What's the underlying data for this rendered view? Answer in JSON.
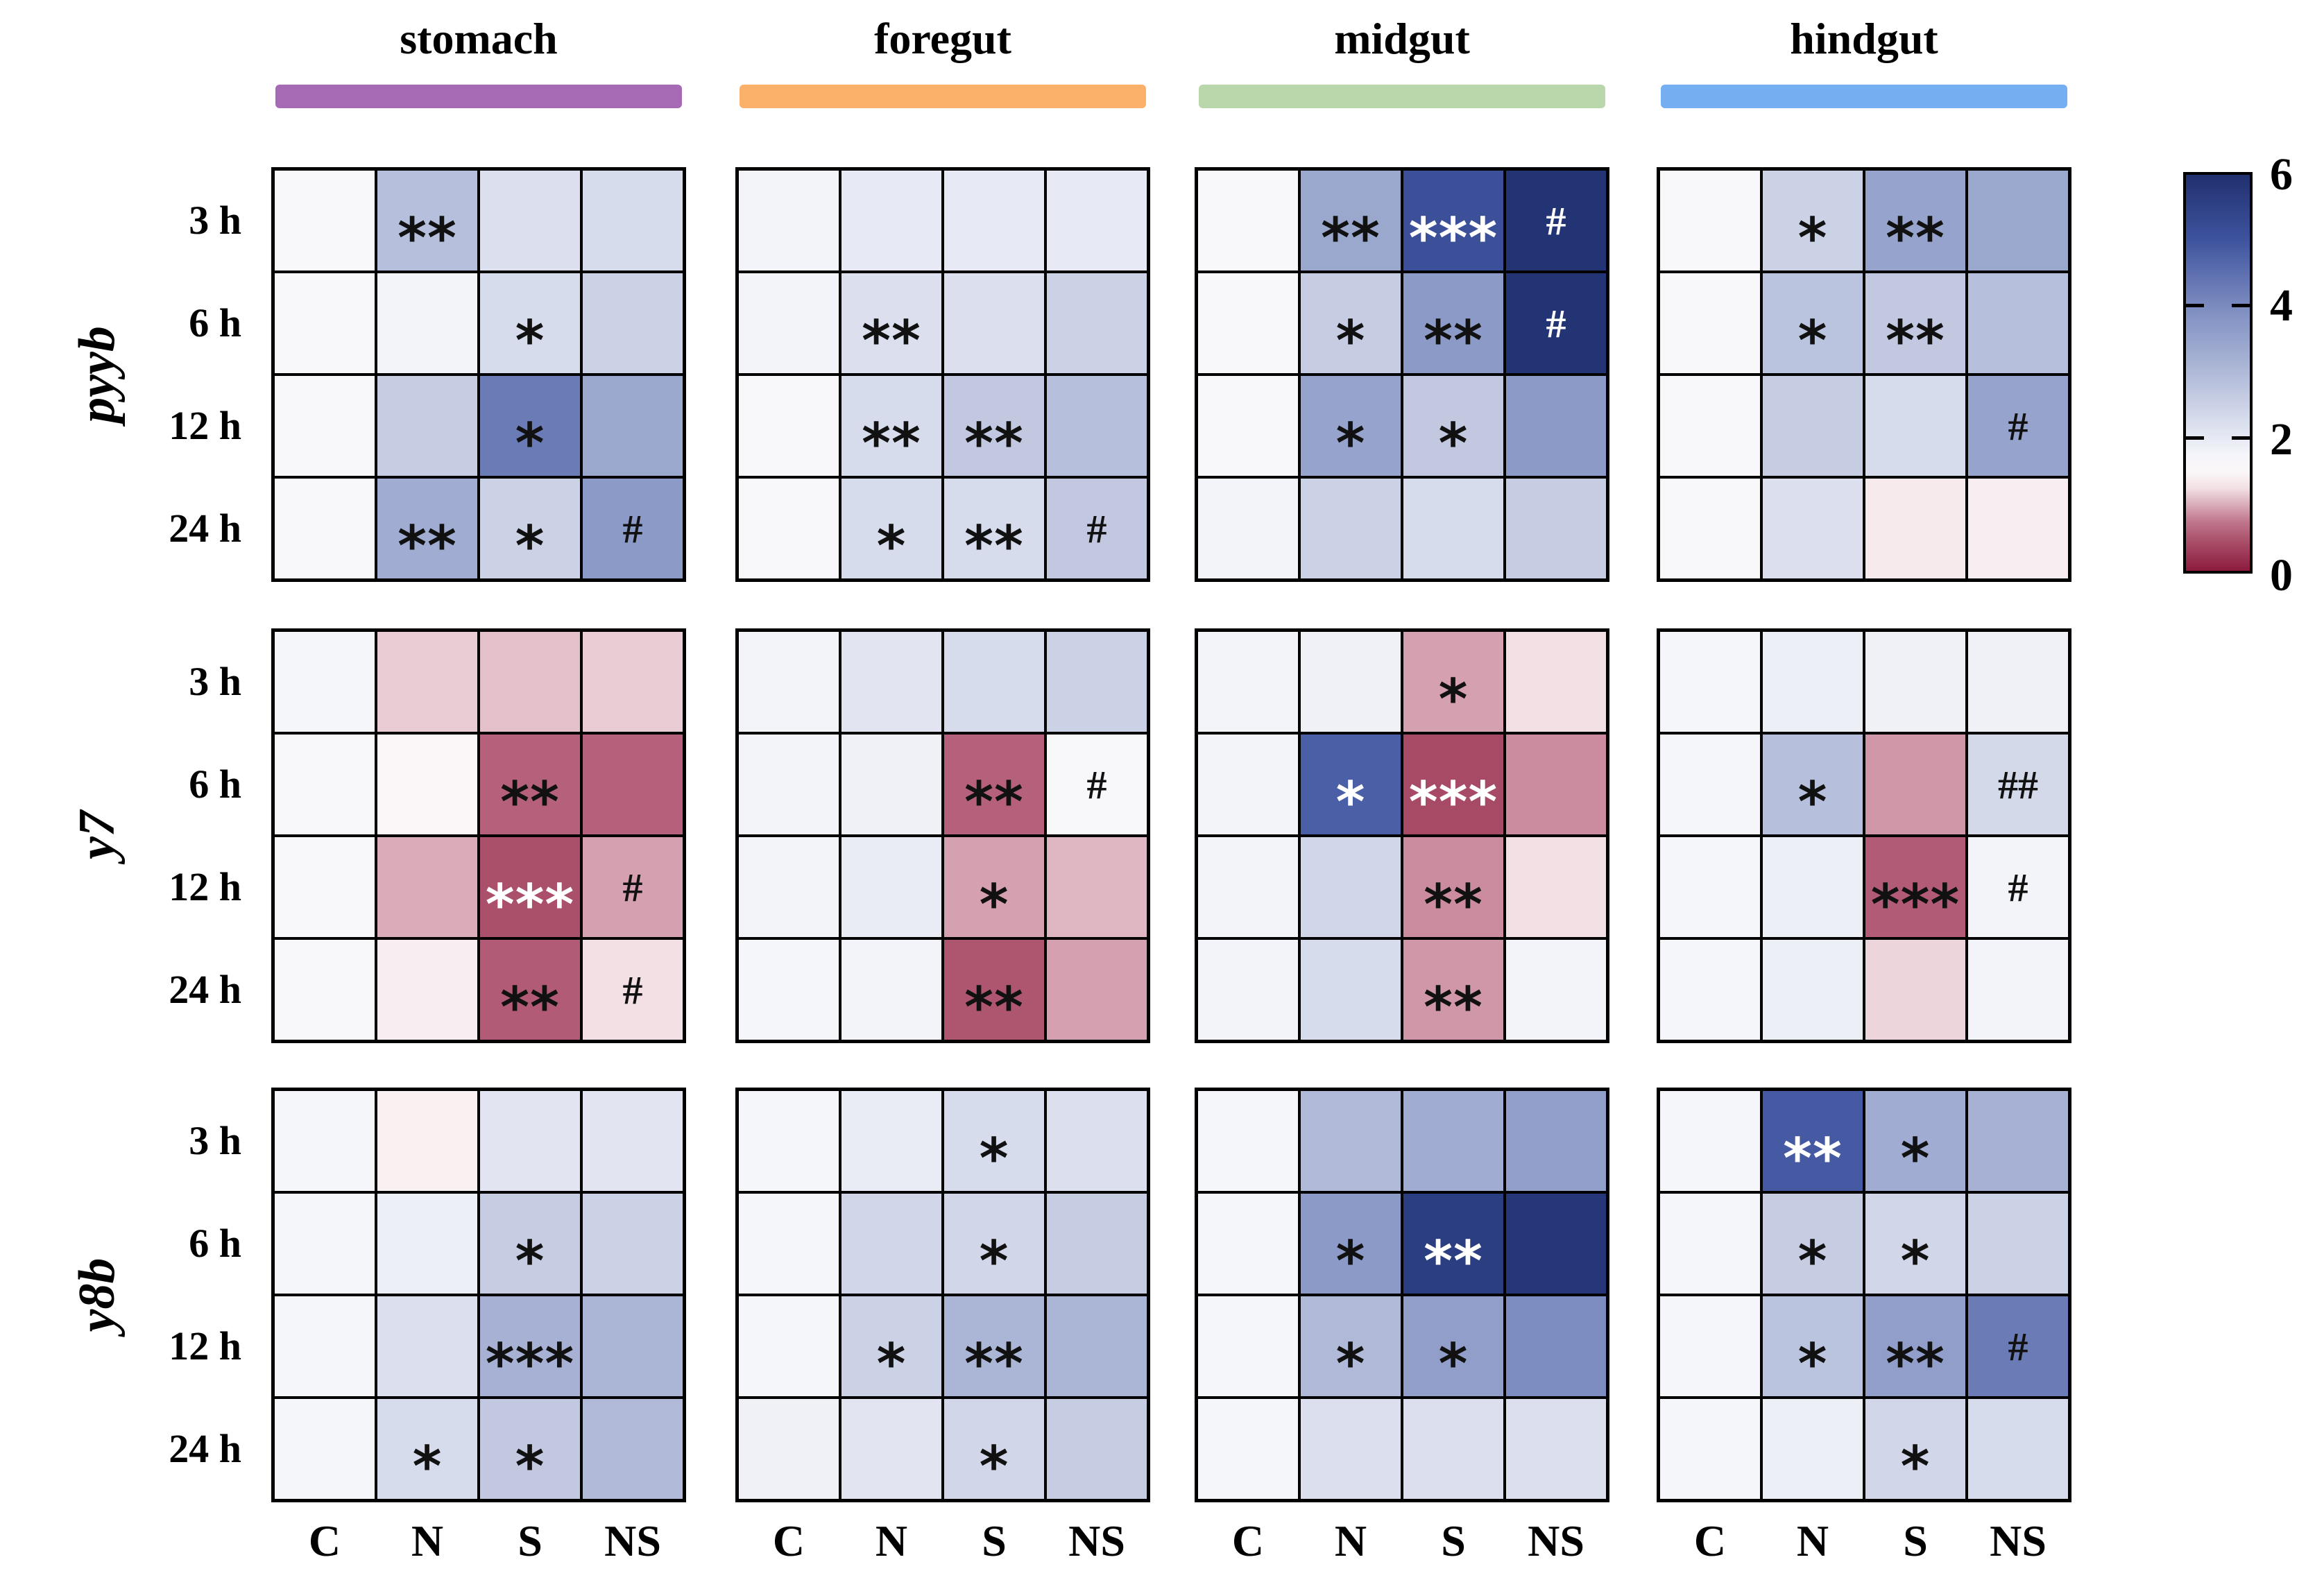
{
  "figure": {
    "background": "#ffffff"
  },
  "tissues": [
    {
      "label": "stomach",
      "bar_color": "#a66ab4"
    },
    {
      "label": "foregut",
      "bar_color": "#fbb169"
    },
    {
      "label": "midgut",
      "bar_color": "#b9d7ab"
    },
    {
      "label": "hindgut",
      "bar_color": "#76aef2"
    }
  ],
  "genes": [
    {
      "label": "pyyb"
    },
    {
      "label": "y7"
    },
    {
      "label": "y8b"
    }
  ],
  "time_labels": [
    "3 h",
    "6 h",
    "12 h",
    "24 h"
  ],
  "treatment_labels": [
    "C",
    "N",
    "S",
    "NS"
  ],
  "colorbar": {
    "min": 0,
    "max": 6,
    "ticks": [
      "6",
      "4",
      "2",
      "0"
    ],
    "tick_values": [
      6,
      4,
      2,
      0
    ]
  },
  "colormap_anchors": [
    [
      0,
      "#8b1b3d"
    ],
    [
      0.7,
      "#bc6d85"
    ],
    [
      1.3,
      "#f7eaed"
    ],
    [
      1.6,
      "#fdfdfd"
    ],
    [
      2,
      "#e7eaf4"
    ],
    [
      3,
      "#b0bad8"
    ],
    [
      4,
      "#7c8cc0"
    ],
    [
      5,
      "#3f549f"
    ],
    [
      6,
      "#20306f"
    ]
  ],
  "chart_data": {
    "type": "heatmap",
    "rows": [
      "3 h",
      "6 h",
      "12 h",
      "24 h"
    ],
    "columns": [
      "C",
      "N",
      "S",
      "NS"
    ],
    "value_range": [
      0,
      6
    ],
    "legend_position": "right",
    "grids": [
      {
        "gene": "pyyb",
        "tissue": "stomach",
        "g": 0,
        "t": 0,
        "values": [
          [
            1.7,
            2.9,
            2.2,
            2.3
          ],
          [
            1.7,
            1.8,
            2.3,
            2.5
          ],
          [
            1.7,
            2.6,
            4.3,
            3.4
          ],
          [
            1.7,
            3.3,
            2.5,
            3.7
          ]
        ],
        "annotations": [
          [
            "",
            "**",
            "",
            ""
          ],
          [
            "",
            "",
            "*",
            ""
          ],
          [
            "",
            "",
            "*",
            ""
          ],
          [
            "",
            "**",
            "*",
            "#"
          ]
        ],
        "white_text": []
      },
      {
        "gene": "pyyb",
        "tissue": "foregut",
        "g": 0,
        "t": 1,
        "values": [
          [
            1.8,
            2.0,
            2.0,
            2.0
          ],
          [
            1.8,
            2.2,
            2.2,
            2.5
          ],
          [
            1.7,
            2.3,
            2.7,
            2.9
          ],
          [
            1.7,
            2.3,
            2.3,
            2.7
          ]
        ],
        "annotations": [
          [
            "",
            "",
            "",
            ""
          ],
          [
            "",
            "**",
            "",
            ""
          ],
          [
            "",
            "**",
            "**",
            ""
          ],
          [
            "",
            "*",
            "**",
            "#"
          ]
        ],
        "white_text": []
      },
      {
        "gene": "pyyb",
        "tissue": "midgut",
        "g": 0,
        "t": 2,
        "values": [
          [
            1.7,
            3.4,
            5.1,
            5.9
          ],
          [
            1.7,
            2.6,
            3.7,
            5.9
          ],
          [
            1.7,
            3.5,
            2.7,
            3.7
          ],
          [
            1.8,
            2.5,
            2.3,
            2.6
          ]
        ],
        "annotations": [
          [
            "",
            "**",
            "***",
            "#"
          ],
          [
            "",
            "*",
            "**",
            "#"
          ],
          [
            "",
            "*",
            "*",
            ""
          ],
          [
            "",
            "",
            "",
            ""
          ]
        ],
        "white_text": [
          [
            0,
            2
          ],
          [
            0,
            3
          ],
          [
            1,
            3
          ]
        ]
      },
      {
        "gene": "pyyb",
        "tissue": "hindgut",
        "g": 0,
        "t": 3,
        "values": [
          [
            1.7,
            2.5,
            3.5,
            3.4
          ],
          [
            1.7,
            2.8,
            2.7,
            2.9
          ],
          [
            1.7,
            2.6,
            2.3,
            3.5
          ],
          [
            1.7,
            2.2,
            1.3,
            1.35
          ]
        ],
        "annotations": [
          [
            "",
            "*",
            "**",
            ""
          ],
          [
            "",
            "*",
            "**",
            ""
          ],
          [
            "",
            "",
            "",
            "#"
          ],
          [
            "",
            "",
            "",
            ""
          ]
        ],
        "white_text": []
      },
      {
        "gene": "y7",
        "tissue": "stomach",
        "g": 1,
        "t": 0,
        "values": [
          [
            1.75,
            1.15,
            1.1,
            1.15
          ],
          [
            1.7,
            1.5,
            0.6,
            0.6
          ],
          [
            1.7,
            1.0,
            0.45,
            0.95
          ],
          [
            1.7,
            1.35,
            0.55,
            1.25
          ]
        ],
        "annotations": [
          [
            "",
            "",
            "",
            ""
          ],
          [
            "",
            "",
            "**",
            ""
          ],
          [
            "",
            "",
            "***",
            "#"
          ],
          [
            "",
            "",
            "**",
            "#"
          ]
        ],
        "white_text": [
          [
            2,
            2
          ]
        ]
      },
      {
        "gene": "y7",
        "tissue": "foregut",
        "g": 1,
        "t": 1,
        "values": [
          [
            1.8,
            2.1,
            2.3,
            2.5
          ],
          [
            1.8,
            1.85,
            0.6,
            1.7
          ],
          [
            1.8,
            1.95,
            0.95,
            1.05
          ],
          [
            1.75,
            1.8,
            0.5,
            0.95
          ]
        ],
        "annotations": [
          [
            "",
            "",
            "",
            ""
          ],
          [
            "",
            "",
            "**",
            "#"
          ],
          [
            "",
            "",
            "*",
            ""
          ],
          [
            "",
            "",
            "**",
            ""
          ]
        ],
        "white_text": []
      },
      {
        "gene": "y7",
        "tissue": "midgut",
        "g": 1,
        "t": 2,
        "values": [
          [
            1.8,
            1.85,
            0.95,
            1.25
          ],
          [
            1.8,
            4.8,
            0.4,
            0.85
          ],
          [
            1.8,
            2.4,
            0.85,
            1.25
          ],
          [
            1.8,
            2.3,
            0.9,
            1.8
          ]
        ],
        "annotations": [
          [
            "",
            "",
            "*",
            ""
          ],
          [
            "",
            "*",
            "***",
            ""
          ],
          [
            "",
            "",
            "**",
            ""
          ],
          [
            "",
            "",
            "**",
            ""
          ]
        ],
        "white_text": [
          [
            1,
            1
          ],
          [
            1,
            2
          ]
        ]
      },
      {
        "gene": "y7",
        "tissue": "hindgut",
        "g": 1,
        "t": 3,
        "values": [
          [
            1.75,
            1.9,
            1.85,
            1.85
          ],
          [
            1.75,
            2.9,
            0.9,
            2.35
          ],
          [
            1.75,
            1.9,
            0.55,
            1.8
          ],
          [
            1.75,
            1.9,
            1.2,
            1.8
          ]
        ],
        "annotations": [
          [
            "",
            "",
            "",
            ""
          ],
          [
            "",
            "*",
            "",
            "##"
          ],
          [
            "",
            "",
            "***",
            "#"
          ],
          [
            "",
            "",
            "",
            ""
          ]
        ],
        "white_text": []
      },
      {
        "gene": "y8b",
        "tissue": "stomach",
        "g": 2,
        "t": 0,
        "values": [
          [
            1.75,
            1.4,
            2.1,
            2.1
          ],
          [
            1.75,
            1.9,
            2.6,
            2.5
          ],
          [
            1.75,
            2.2,
            3.2,
            3.1
          ],
          [
            1.75,
            2.3,
            2.7,
            3.0
          ]
        ],
        "annotations": [
          [
            "",
            "",
            "",
            ""
          ],
          [
            "",
            "",
            "*",
            ""
          ],
          [
            "",
            "",
            "***",
            ""
          ],
          [
            "",
            "*",
            "*",
            ""
          ]
        ],
        "white_text": []
      },
      {
        "gene": "y8b",
        "tissue": "foregut",
        "g": 2,
        "t": 1,
        "values": [
          [
            1.75,
            1.95,
            2.3,
            2.2
          ],
          [
            1.75,
            2.4,
            2.4,
            2.6
          ],
          [
            1.75,
            2.5,
            3.1,
            3.1
          ],
          [
            1.85,
            2.1,
            2.4,
            2.6
          ]
        ],
        "annotations": [
          [
            "",
            "",
            "*",
            ""
          ],
          [
            "",
            "",
            "*",
            ""
          ],
          [
            "",
            "*",
            "**",
            ""
          ],
          [
            "",
            "",
            "*",
            ""
          ]
        ],
        "white_text": []
      },
      {
        "gene": "y8b",
        "tissue": "midgut",
        "g": 2,
        "t": 2,
        "values": [
          [
            1.75,
            3.0,
            3.3,
            3.6
          ],
          [
            1.75,
            3.7,
            5.6,
            5.8
          ],
          [
            1.75,
            3.0,
            3.6,
            4.0
          ],
          [
            1.75,
            2.2,
            2.2,
            2.2
          ]
        ],
        "annotations": [
          [
            "",
            "",
            "",
            ""
          ],
          [
            "",
            "*",
            "**",
            ""
          ],
          [
            "",
            "*",
            "*",
            ""
          ],
          [
            "",
            "",
            "",
            ""
          ]
        ],
        "white_text": [
          [
            1,
            2
          ]
        ]
      },
      {
        "gene": "y8b",
        "tissue": "hindgut",
        "g": 2,
        "t": 3,
        "values": [
          [
            1.75,
            4.9,
            3.3,
            3.2
          ],
          [
            1.75,
            2.6,
            2.4,
            2.5
          ],
          [
            1.75,
            2.8,
            3.6,
            4.3
          ],
          [
            1.75,
            1.9,
            2.4,
            2.3
          ]
        ],
        "annotations": [
          [
            "",
            "**",
            "*",
            ""
          ],
          [
            "",
            "*",
            "*",
            ""
          ],
          [
            "",
            "*",
            "**",
            "#"
          ],
          [
            "",
            "",
            "*",
            ""
          ]
        ],
        "white_text": [
          [
            0,
            1
          ]
        ]
      }
    ]
  }
}
